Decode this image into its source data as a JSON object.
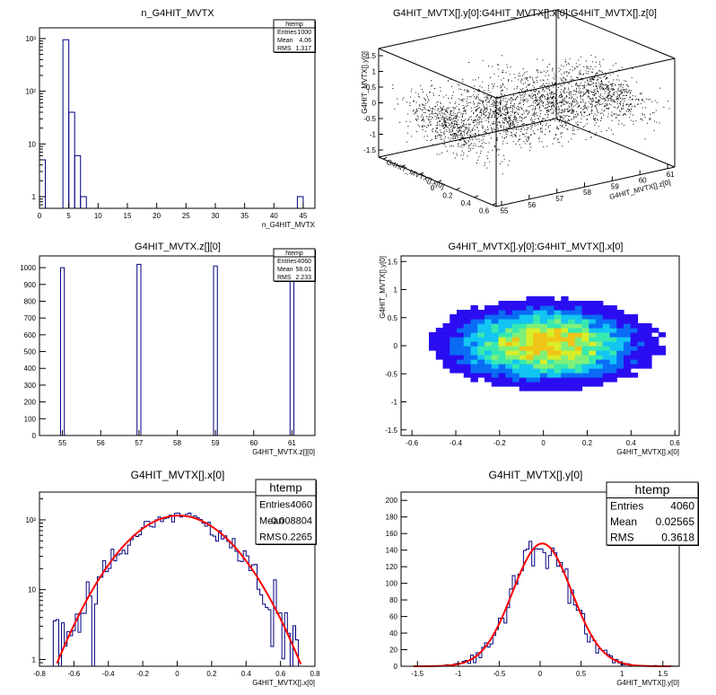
{
  "chart_data": [
    {
      "id": "p1",
      "type": "bar",
      "title": "n_G4HIT_MVTX",
      "xlabel": "n_G4HIT_MVTX",
      "ylabel": "",
      "log_y": true,
      "xlim": [
        0,
        47
      ],
      "ylim": [
        0.6,
        1600
      ],
      "x_ticks": [
        0,
        5,
        10,
        15,
        20,
        25,
        30,
        35,
        40,
        45
      ],
      "y_ticks": [
        {
          "v": 1,
          "label": "1"
        },
        {
          "v": 10,
          "label": "10"
        },
        {
          "v": 100,
          "label": "10²"
        },
        {
          "v": 1000,
          "label": "10³"
        }
      ],
      "bins": [
        {
          "x0": 0,
          "x1": 1,
          "v": 5
        },
        {
          "x0": 4,
          "x1": 5,
          "v": 950
        },
        {
          "x0": 5,
          "x1": 6,
          "v": 40
        },
        {
          "x0": 6,
          "x1": 7,
          "v": 6
        },
        {
          "x0": 7,
          "x1": 8,
          "v": 1
        },
        {
          "x0": 44,
          "x1": 45,
          "v": 1
        }
      ],
      "stats": {
        "name": "htemp",
        "rows": [
          [
            "Entries",
            "1000"
          ],
          [
            "Mean",
            "4.06"
          ],
          [
            "RMS",
            "1.317"
          ]
        ]
      }
    },
    {
      "id": "p2",
      "type": "scatter",
      "title": "G4HIT_MVTX[].y[0]:G4HIT_MVTX[].x[0]:G4HIT_MVTX[].z[0]",
      "xlabel": "G4HIT_MVTX[].z[0]",
      "ylabel": "G4HIT_MVTX[].x[0]",
      "zlabel": "G4HIT_MVTX[].y[0]",
      "z_ticks": [
        "-1.5",
        "-1",
        "-0.5",
        "0",
        "0.5",
        "1",
        "1.5"
      ],
      "x_ticks": [
        "55",
        "56",
        "57",
        "58",
        "59",
        "60",
        "61"
      ],
      "y_ticks": [
        "-0.6",
        "-0.4",
        "-0.2",
        "0",
        "0.2",
        "0.4",
        "0.6"
      ],
      "clusters": [
        55,
        57,
        59,
        61
      ]
    },
    {
      "id": "p3",
      "type": "bar",
      "title": "G4HIT_MVTX.z[][0]",
      "xlabel": "G4HIT_MVTX.z[][0]",
      "ylabel": "",
      "log_y": false,
      "xlim": [
        54.4,
        61.6
      ],
      "ylim": [
        0,
        1070
      ],
      "x_ticks": [
        55,
        56,
        57,
        58,
        59,
        60,
        61
      ],
      "y_ticks": [
        {
          "v": 0,
          "label": "0"
        },
        {
          "v": 100,
          "label": "100"
        },
        {
          "v": 200,
          "label": "200"
        },
        {
          "v": 300,
          "label": "300"
        },
        {
          "v": 400,
          "label": "400"
        },
        {
          "v": 500,
          "label": "500"
        },
        {
          "v": 600,
          "label": "600"
        },
        {
          "v": 700,
          "label": "700"
        },
        {
          "v": 800,
          "label": "800"
        },
        {
          "v": 900,
          "label": "900"
        },
        {
          "v": 1000,
          "label": "1000"
        }
      ],
      "bins": [
        {
          "x0": 54.95,
          "x1": 55.05,
          "v": 1000
        },
        {
          "x0": 56.95,
          "x1": 57.05,
          "v": 1020
        },
        {
          "x0": 58.95,
          "x1": 59.05,
          "v": 1010
        },
        {
          "x0": 60.95,
          "x1": 61.05,
          "v": 1030
        }
      ],
      "stats": {
        "name": "htemp",
        "rows": [
          [
            "Entries",
            "4060"
          ],
          [
            "Mean",
            "58.01"
          ],
          [
            "RMS",
            "2.233"
          ]
        ]
      }
    },
    {
      "id": "p4",
      "type": "heatmap",
      "title": "G4HIT_MVTX[].y[0]:G4HIT_MVTX[].x[0]",
      "xlabel": "G4HIT_MVTX[].x[0]",
      "ylabel": "G4HIT_MVTX[].y[0]",
      "xlim": [
        -0.65,
        0.62
      ],
      "ylim": [
        -1.6,
        1.6
      ],
      "x_ticks": [
        -0.6,
        -0.4,
        -0.2,
        0,
        0.2,
        0.4,
        0.6
      ],
      "y_ticks": [
        -1.5,
        -1,
        -0.5,
        0,
        0.5,
        1,
        1.5
      ],
      "sigma_x": 0.23,
      "sigma_y": 0.36,
      "mean_x": 0.01,
      "mean_y": 0.03,
      "colors": [
        "#2a0df0",
        "#0a6cf5",
        "#12c5f2",
        "#37e9b0",
        "#7ef07a",
        "#d8ee28",
        "#f0c418"
      ]
    },
    {
      "id": "p5",
      "type": "bar",
      "title": "G4HIT_MVTX[].x[0]",
      "xlabel": "G4HIT_MVTX[].x[0]",
      "ylabel": "",
      "log_y": true,
      "xlim": [
        -0.8,
        0.8
      ],
      "ylim": [
        0.8,
        250
      ],
      "x_ticks": [
        -0.8,
        -0.6,
        -0.4,
        -0.2,
        0,
        0.2,
        0.4,
        0.6,
        0.8
      ],
      "y_ticks": [
        {
          "v": 1,
          "label": "1"
        },
        {
          "v": 10,
          "label": "10"
        },
        {
          "v": 100,
          "label": "10²"
        }
      ],
      "gauss": {
        "amp": 115,
        "mean": 0.0088,
        "sigma": 0.2265,
        "range": [
          -0.72,
          0.74
        ]
      },
      "stats": {
        "name": "htemp",
        "rows": [
          [
            "Entries",
            "4060"
          ],
          [
            "Mean",
            "0.008804"
          ],
          [
            "RMS",
            "0.2265"
          ]
        ]
      }
    },
    {
      "id": "p6",
      "type": "bar",
      "title": "G4HIT_MVTX[].y[0]",
      "xlabel": "G4HIT_MVTX[].y[0]",
      "ylabel": "",
      "log_y": false,
      "xlim": [
        -1.7,
        1.7
      ],
      "ylim": [
        0,
        210
      ],
      "x_ticks": [
        -1.5,
        -1,
        -0.5,
        0,
        0.5,
        1,
        1.5
      ],
      "y_ticks": [
        {
          "v": 0,
          "label": "0"
        },
        {
          "v": 20,
          "label": "20"
        },
        {
          "v": 40,
          "label": "40"
        },
        {
          "v": 60,
          "label": "60"
        },
        {
          "v": 80,
          "label": "80"
        },
        {
          "v": 100,
          "label": "100"
        },
        {
          "v": 120,
          "label": "120"
        },
        {
          "v": 140,
          "label": "140"
        },
        {
          "v": 160,
          "label": "160"
        },
        {
          "v": 180,
          "label": "180"
        },
        {
          "v": 200,
          "label": "200"
        }
      ],
      "gauss": {
        "amp": 148,
        "mean": 0.0257,
        "sigma": 0.3618,
        "range": [
          -1.55,
          1.6
        ]
      },
      "stats": {
        "name": "htemp",
        "rows": [
          [
            "Entries",
            "4060"
          ],
          [
            "Mean",
            "0.02565"
          ],
          [
            "RMS",
            "0.3618"
          ]
        ]
      }
    }
  ]
}
